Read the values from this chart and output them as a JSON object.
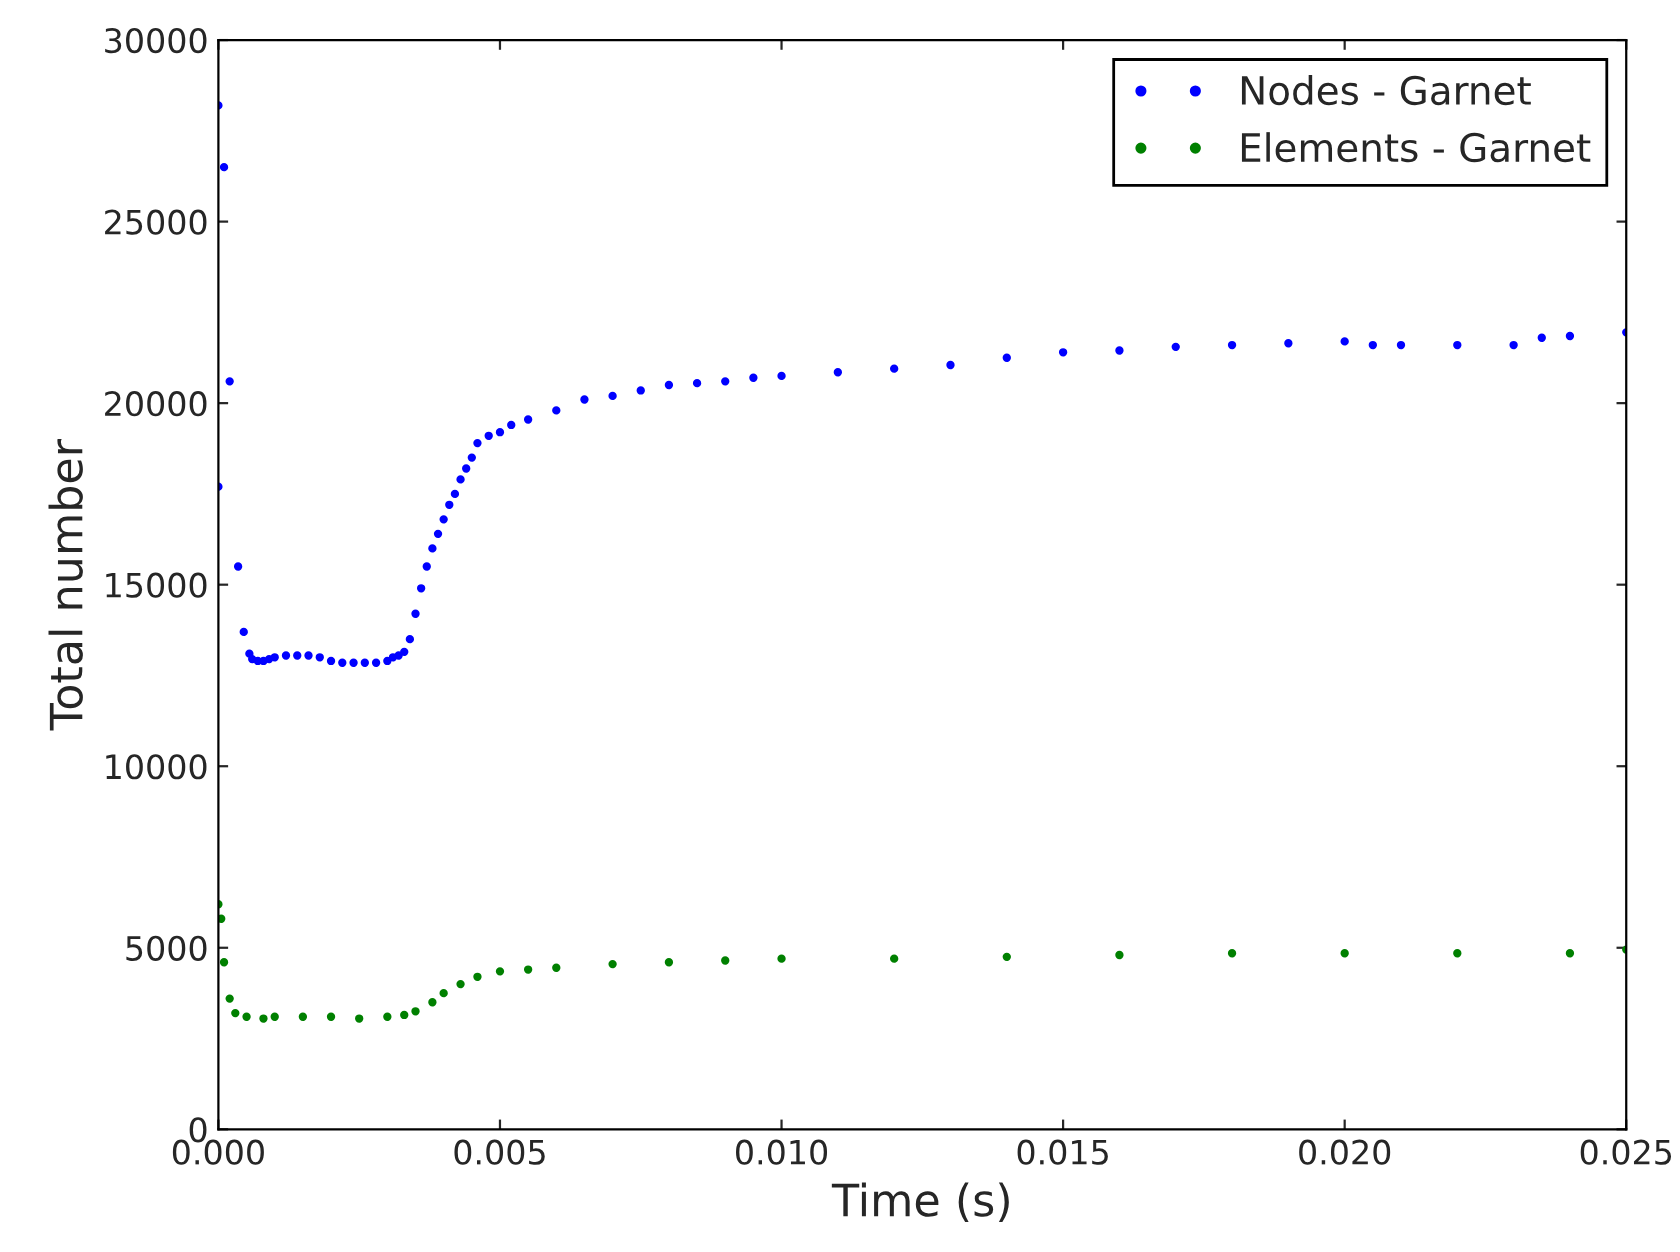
{
  "chart_data": {
    "type": "scatter",
    "xlabel": "Time (s)",
    "ylabel": "Total number",
    "xlim": [
      0,
      0.025
    ],
    "ylim": [
      0,
      30000
    ],
    "xticks": [
      {
        "value": 0,
        "label": "0.000"
      },
      {
        "value": 0.005,
        "label": "0.005"
      },
      {
        "value": 0.01,
        "label": "0.010"
      },
      {
        "value": 0.015,
        "label": "0.015"
      },
      {
        "value": 0.02,
        "label": "0.020"
      },
      {
        "value": 0.025,
        "label": "0.025"
      }
    ],
    "yticks": [
      0,
      5000,
      10000,
      15000,
      20000,
      25000,
      30000
    ],
    "legend": "top right",
    "marker": "circle",
    "grid": false,
    "series": [
      {
        "name": "Nodes - Garnet",
        "color": "#0000ff",
        "x": [
          0,
          0,
          0.0001,
          0.0002,
          0.00035,
          0.00045,
          0.00055,
          0.0006,
          0.0007,
          0.0008,
          0.0009,
          0.001,
          0.0012,
          0.0014,
          0.0016,
          0.0018,
          0.002,
          0.0022,
          0.0024,
          0.0026,
          0.0028,
          0.003,
          0.0031,
          0.0032,
          0.0033,
          0.0034,
          0.0035,
          0.0036,
          0.0037,
          0.0038,
          0.0039,
          0.004,
          0.0041,
          0.0042,
          0.0043,
          0.0044,
          0.0045,
          0.0046,
          0.0048,
          0.005,
          0.0052,
          0.0055,
          0.006,
          0.0065,
          0.007,
          0.0075,
          0.008,
          0.0085,
          0.009,
          0.0095,
          0.01,
          0.011,
          0.012,
          0.013,
          0.014,
          0.015,
          0.016,
          0.017,
          0.018,
          0.019,
          0.02,
          0.0205,
          0.021,
          0.022,
          0.023,
          0.0235,
          0.024,
          0.025
        ],
        "values": [
          28200,
          17700,
          26500,
          20600,
          15500,
          13700,
          13100,
          12950,
          12900,
          12900,
          12950,
          13000,
          13050,
          13050,
          13050,
          13000,
          12900,
          12850,
          12850,
          12850,
          12850,
          12900,
          13000,
          13050,
          13150,
          13500,
          14200,
          14900,
          15500,
          16000,
          16400,
          16800,
          17200,
          17500,
          17900,
          18200,
          18500,
          18900,
          19100,
          19200,
          19400,
          19550,
          19800,
          20100,
          20200,
          20350,
          20500,
          20550,
          20600,
          20700,
          20750,
          20850,
          20950,
          21050,
          21250,
          21400,
          21450,
          21550,
          21600,
          21650,
          21700,
          21600,
          21600,
          21600,
          21600,
          21800,
          21850,
          21950
        ]
      },
      {
        "name": "Elements - Garnet",
        "color": "#008000",
        "x": [
          0,
          5e-05,
          0.0001,
          0.0002,
          0.0003,
          0.0005,
          0.0008,
          0.001,
          0.0015,
          0.002,
          0.0025,
          0.003,
          0.0033,
          0.0035,
          0.0038,
          0.004,
          0.0043,
          0.0046,
          0.005,
          0.0055,
          0.006,
          0.007,
          0.008,
          0.009,
          0.01,
          0.012,
          0.014,
          0.016,
          0.018,
          0.02,
          0.022,
          0.024,
          0.025
        ],
        "values": [
          6200,
          5800,
          4600,
          3600,
          3200,
          3100,
          3050,
          3100,
          3100,
          3100,
          3050,
          3100,
          3150,
          3250,
          3500,
          3750,
          4000,
          4200,
          4350,
          4400,
          4450,
          4550,
          4600,
          4650,
          4700,
          4700,
          4750,
          4800,
          4850,
          4850,
          4850,
          4850,
          4950
        ]
      }
    ]
  }
}
